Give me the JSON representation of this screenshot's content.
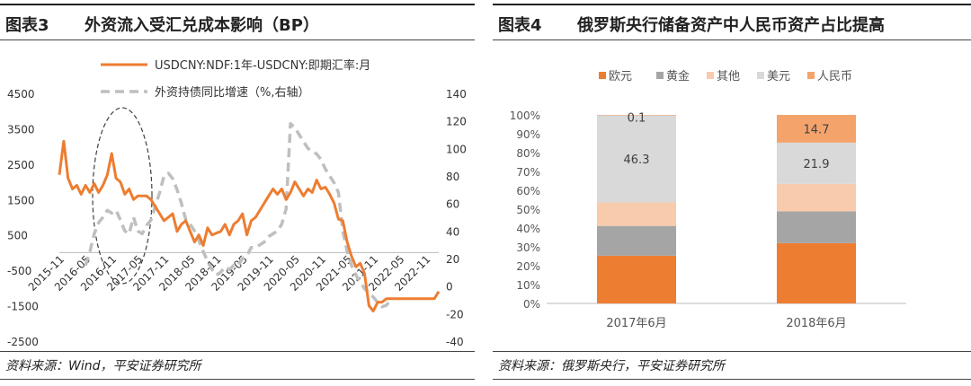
{
  "left": {
    "fig_label": "图表3",
    "title": "外资流入受汇兑成本影响（BP）",
    "source": "资料来源：Wind，平安证券研究所"
  },
  "right": {
    "fig_label": "图表4",
    "title": "俄罗斯央行储备资产中人民币资产占比提高",
    "source": "资料来源：俄罗斯央行，平安证券研究所"
  },
  "colors": {
    "orange": "#ED7D31",
    "gray_dash": "#BFBFBF",
    "gold": "#A5A5A5",
    "other": "#F8CBAD",
    "usd": "#D9D9D9",
    "rmb": "#F4A46B",
    "ellipse": "#404040"
  },
  "chart_data": [
    {
      "type": "line",
      "title": "",
      "x_ticks": [
        "2015-11",
        "2016-05",
        "2016-11",
        "2017-05",
        "2017-11",
        "2018-05",
        "2018-11",
        "2019-05",
        "2019-11",
        "2020-05",
        "2020-11",
        "2021-05",
        "2021-11",
        "2022-05",
        "2022-11"
      ],
      "y_left": {
        "ticks": [
          4500,
          3500,
          2500,
          1500,
          500,
          -500,
          -1500,
          -2500
        ],
        "lim": [
          -2500,
          4500
        ]
      },
      "y_right": {
        "ticks": [
          140,
          120,
          100,
          80,
          60,
          40,
          20,
          0,
          -20,
          -40
        ],
        "lim": [
          -40,
          140
        ]
      },
      "series": [
        {
          "name": "USDCNY:NDF:1年-USDCNY:即期汇率:月",
          "axis": "left",
          "x": [
            0,
            1,
            2,
            3,
            4,
            5,
            6,
            7,
            8,
            9,
            10,
            11,
            12,
            13,
            14,
            15,
            16,
            17,
            18,
            19,
            20,
            21,
            22,
            23,
            24,
            25,
            26,
            27,
            28,
            29,
            30,
            31,
            32,
            33,
            34,
            35,
            36,
            37,
            38,
            39,
            40,
            41,
            42,
            43,
            44,
            45,
            46,
            47,
            48,
            49,
            50,
            51,
            52,
            53,
            54,
            55,
            56,
            57,
            58,
            59,
            60,
            61,
            62,
            63,
            64,
            65,
            66,
            67,
            68,
            69,
            70,
            71,
            72,
            73,
            74,
            75,
            76,
            77,
            78,
            79,
            80,
            81,
            82,
            83,
            84,
            85,
            86,
            87
          ],
          "values": [
            2200,
            3150,
            2100,
            1800,
            1900,
            1650,
            1900,
            1700,
            1950,
            1700,
            1900,
            2200,
            2800,
            2100,
            2000,
            1650,
            1800,
            1500,
            1600,
            1600,
            1600,
            1500,
            1300,
            1100,
            900,
            1000,
            1100,
            600,
            800,
            900,
            600,
            300,
            500,
            200,
            700,
            500,
            550,
            600,
            800,
            500,
            800,
            900,
            1100,
            500,
            900,
            1000,
            1200,
            1400,
            1600,
            1800,
            1650,
            1800,
            1500,
            1700,
            2000,
            1800,
            1600,
            1800,
            1700,
            2050,
            1800,
            1850,
            1650,
            1400,
            950,
            900,
            300,
            -100,
            -400,
            -300,
            -600,
            -1500,
            -1650,
            -1400,
            -1400,
            -1300,
            -1300,
            -1300,
            -1300,
            -1300,
            -1300,
            -1300,
            -1300,
            -1300,
            -1300,
            -1300,
            -1300,
            -1100
          ]
        },
        {
          "name": "外资持债同比增速（%,右轴）",
          "axis": "right",
          "x": [
            6,
            7,
            8,
            9,
            10,
            11,
            12,
            13,
            14,
            15,
            16,
            17,
            18,
            19,
            20,
            21,
            22,
            23,
            24,
            25,
            26,
            27,
            28,
            29,
            30,
            31,
            32,
            33,
            34,
            35,
            36,
            37,
            38,
            39,
            40,
            41,
            42,
            43,
            44,
            45,
            46,
            47,
            48,
            49,
            50,
            51,
            52,
            53,
            54,
            55,
            56,
            57,
            58,
            59,
            60,
            61,
            62,
            63,
            64,
            65,
            66,
            67,
            68,
            69,
            70,
            71,
            72,
            73,
            74,
            75,
            76
          ],
          "values": [
            15,
            25,
            38,
            46,
            50,
            55,
            53,
            55,
            48,
            40,
            38,
            50,
            40,
            38,
            44,
            48,
            58,
            68,
            80,
            82,
            78,
            70,
            60,
            48,
            45,
            40,
            33,
            25,
            18,
            12,
            8,
            10,
            14,
            12,
            15,
            15,
            20,
            22,
            28,
            28,
            30,
            32,
            36,
            38,
            40,
            45,
            56,
            118,
            115,
            110,
            105,
            100,
            98,
            96,
            92,
            85,
            80,
            75,
            68,
            40,
            25,
            15,
            8,
            3,
            -2,
            -5,
            -8,
            -12,
            -15,
            -14,
            -10
          ]
        }
      ],
      "annotations": [
        "dashed-ellipse-2016-11-to-2017-11"
      ]
    },
    {
      "type": "bar",
      "stacked": true,
      "percent": true,
      "categories": [
        "2017年6月",
        "2018年6月"
      ],
      "ylim": [
        0,
        100
      ],
      "y_ticks": [
        "0%",
        "10%",
        "20%",
        "30%",
        "40%",
        "50%",
        "60%",
        "70%",
        "80%",
        "90%",
        "100%"
      ],
      "legend_position": "top",
      "series": [
        {
          "name": "欧元",
          "values": [
            25.3,
            32.0
          ]
        },
        {
          "name": "黄金",
          "values": [
            15.8,
            16.8
          ]
        },
        {
          "name": "其他",
          "values": [
            12.5,
            14.6
          ]
        },
        {
          "name": "美元",
          "values": [
            46.3,
            21.9
          ]
        },
        {
          "name": "人民币",
          "values": [
            0.1,
            14.7
          ]
        }
      ],
      "data_labels": [
        {
          "series": "人民币",
          "category": "2017年6月",
          "text": "0.1"
        },
        {
          "series": "美元",
          "category": "2017年6月",
          "text": "46.3"
        },
        {
          "series": "人民币",
          "category": "2018年6月",
          "text": "14.7"
        },
        {
          "series": "美元",
          "category": "2018年6月",
          "text": "21.9"
        }
      ]
    }
  ]
}
